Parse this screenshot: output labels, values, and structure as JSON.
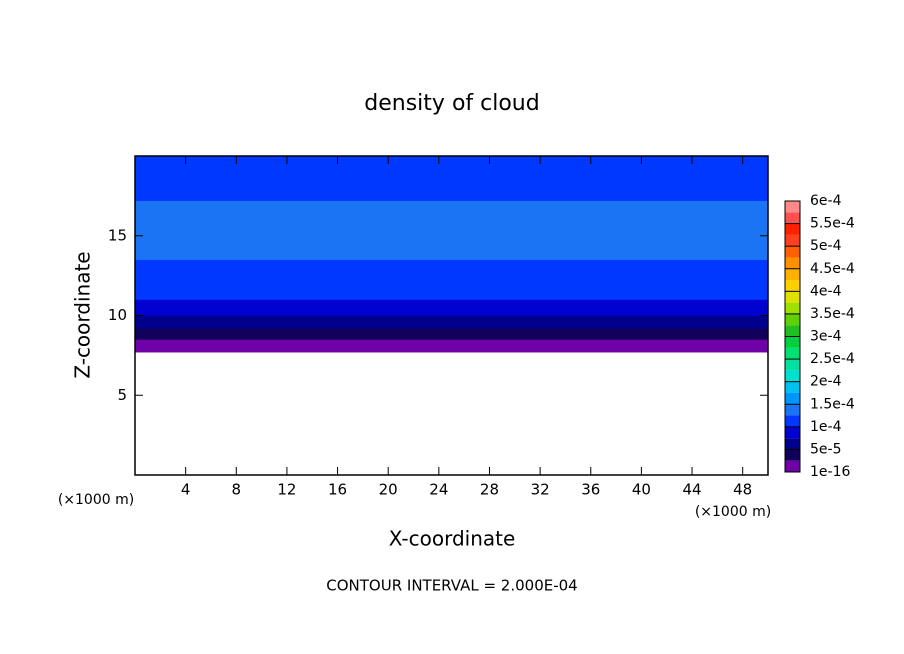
{
  "chart_data": {
    "type": "contour",
    "title": "density of cloud",
    "x_label": "X-coordinate",
    "y_label": "Z-coordinate",
    "x_unit_label": "(×1000 m)",
    "y_unit_label": "(×1000 m)",
    "annotation": "CONTOUR INTERVAL = 2.000E-04",
    "xlim": [
      0,
      50
    ],
    "ylim": [
      0,
      20
    ],
    "xticks": [
      4,
      8,
      12,
      16,
      20,
      24,
      28,
      32,
      36,
      40,
      44,
      48
    ],
    "yticks": [
      5,
      10,
      15
    ],
    "z": [
      7.7,
      8.5,
      9.2,
      10.0,
      11.0,
      13.5,
      17.2
    ],
    "values": [
      1e-05,
      3e-05,
      6e-05,
      8.5e-05,
      0.00011,
      0.00013,
      0.00011
    ],
    "clim": [
      0,
      0.0006
    ],
    "colorbar_colors": [
      "#7000a8",
      "#10005a",
      "#00008c",
      "#0000d0",
      "#0038ff",
      "#1a74f4",
      "#0096ff",
      "#00c0f0",
      "#00e0d0",
      "#00e0a0",
      "#00e070",
      "#00d040",
      "#20c020",
      "#60d000",
      "#a0e000",
      "#e0e000",
      "#ffd000",
      "#ffb000",
      "#ff9000",
      "#ff6000",
      "#ff4020",
      "#ff2000",
      "#ff5050",
      "#ff8888"
    ],
    "colorbar_ticks": [
      {
        "value": 1e-16,
        "label": "1e-16"
      },
      {
        "value": 5e-05,
        "label": "5e-5"
      },
      {
        "value": 0.0001,
        "label": "1e-4"
      },
      {
        "value": 0.00015,
        "label": "1.5e-4"
      },
      {
        "value": 0.0002,
        "label": "2e-4"
      },
      {
        "value": 0.00025,
        "label": "2.5e-4"
      },
      {
        "value": 0.0003,
        "label": "3e-4"
      },
      {
        "value": 0.00035,
        "label": "3.5e-4"
      },
      {
        "value": 0.0004,
        "label": "4e-4"
      },
      {
        "value": 0.00045,
        "label": "4.5e-4"
      },
      {
        "value": 0.0005,
        "label": "5e-4"
      },
      {
        "value": 0.00055,
        "label": "5.5e-4"
      },
      {
        "value": 0.0006,
        "label": "6e-4"
      }
    ]
  }
}
